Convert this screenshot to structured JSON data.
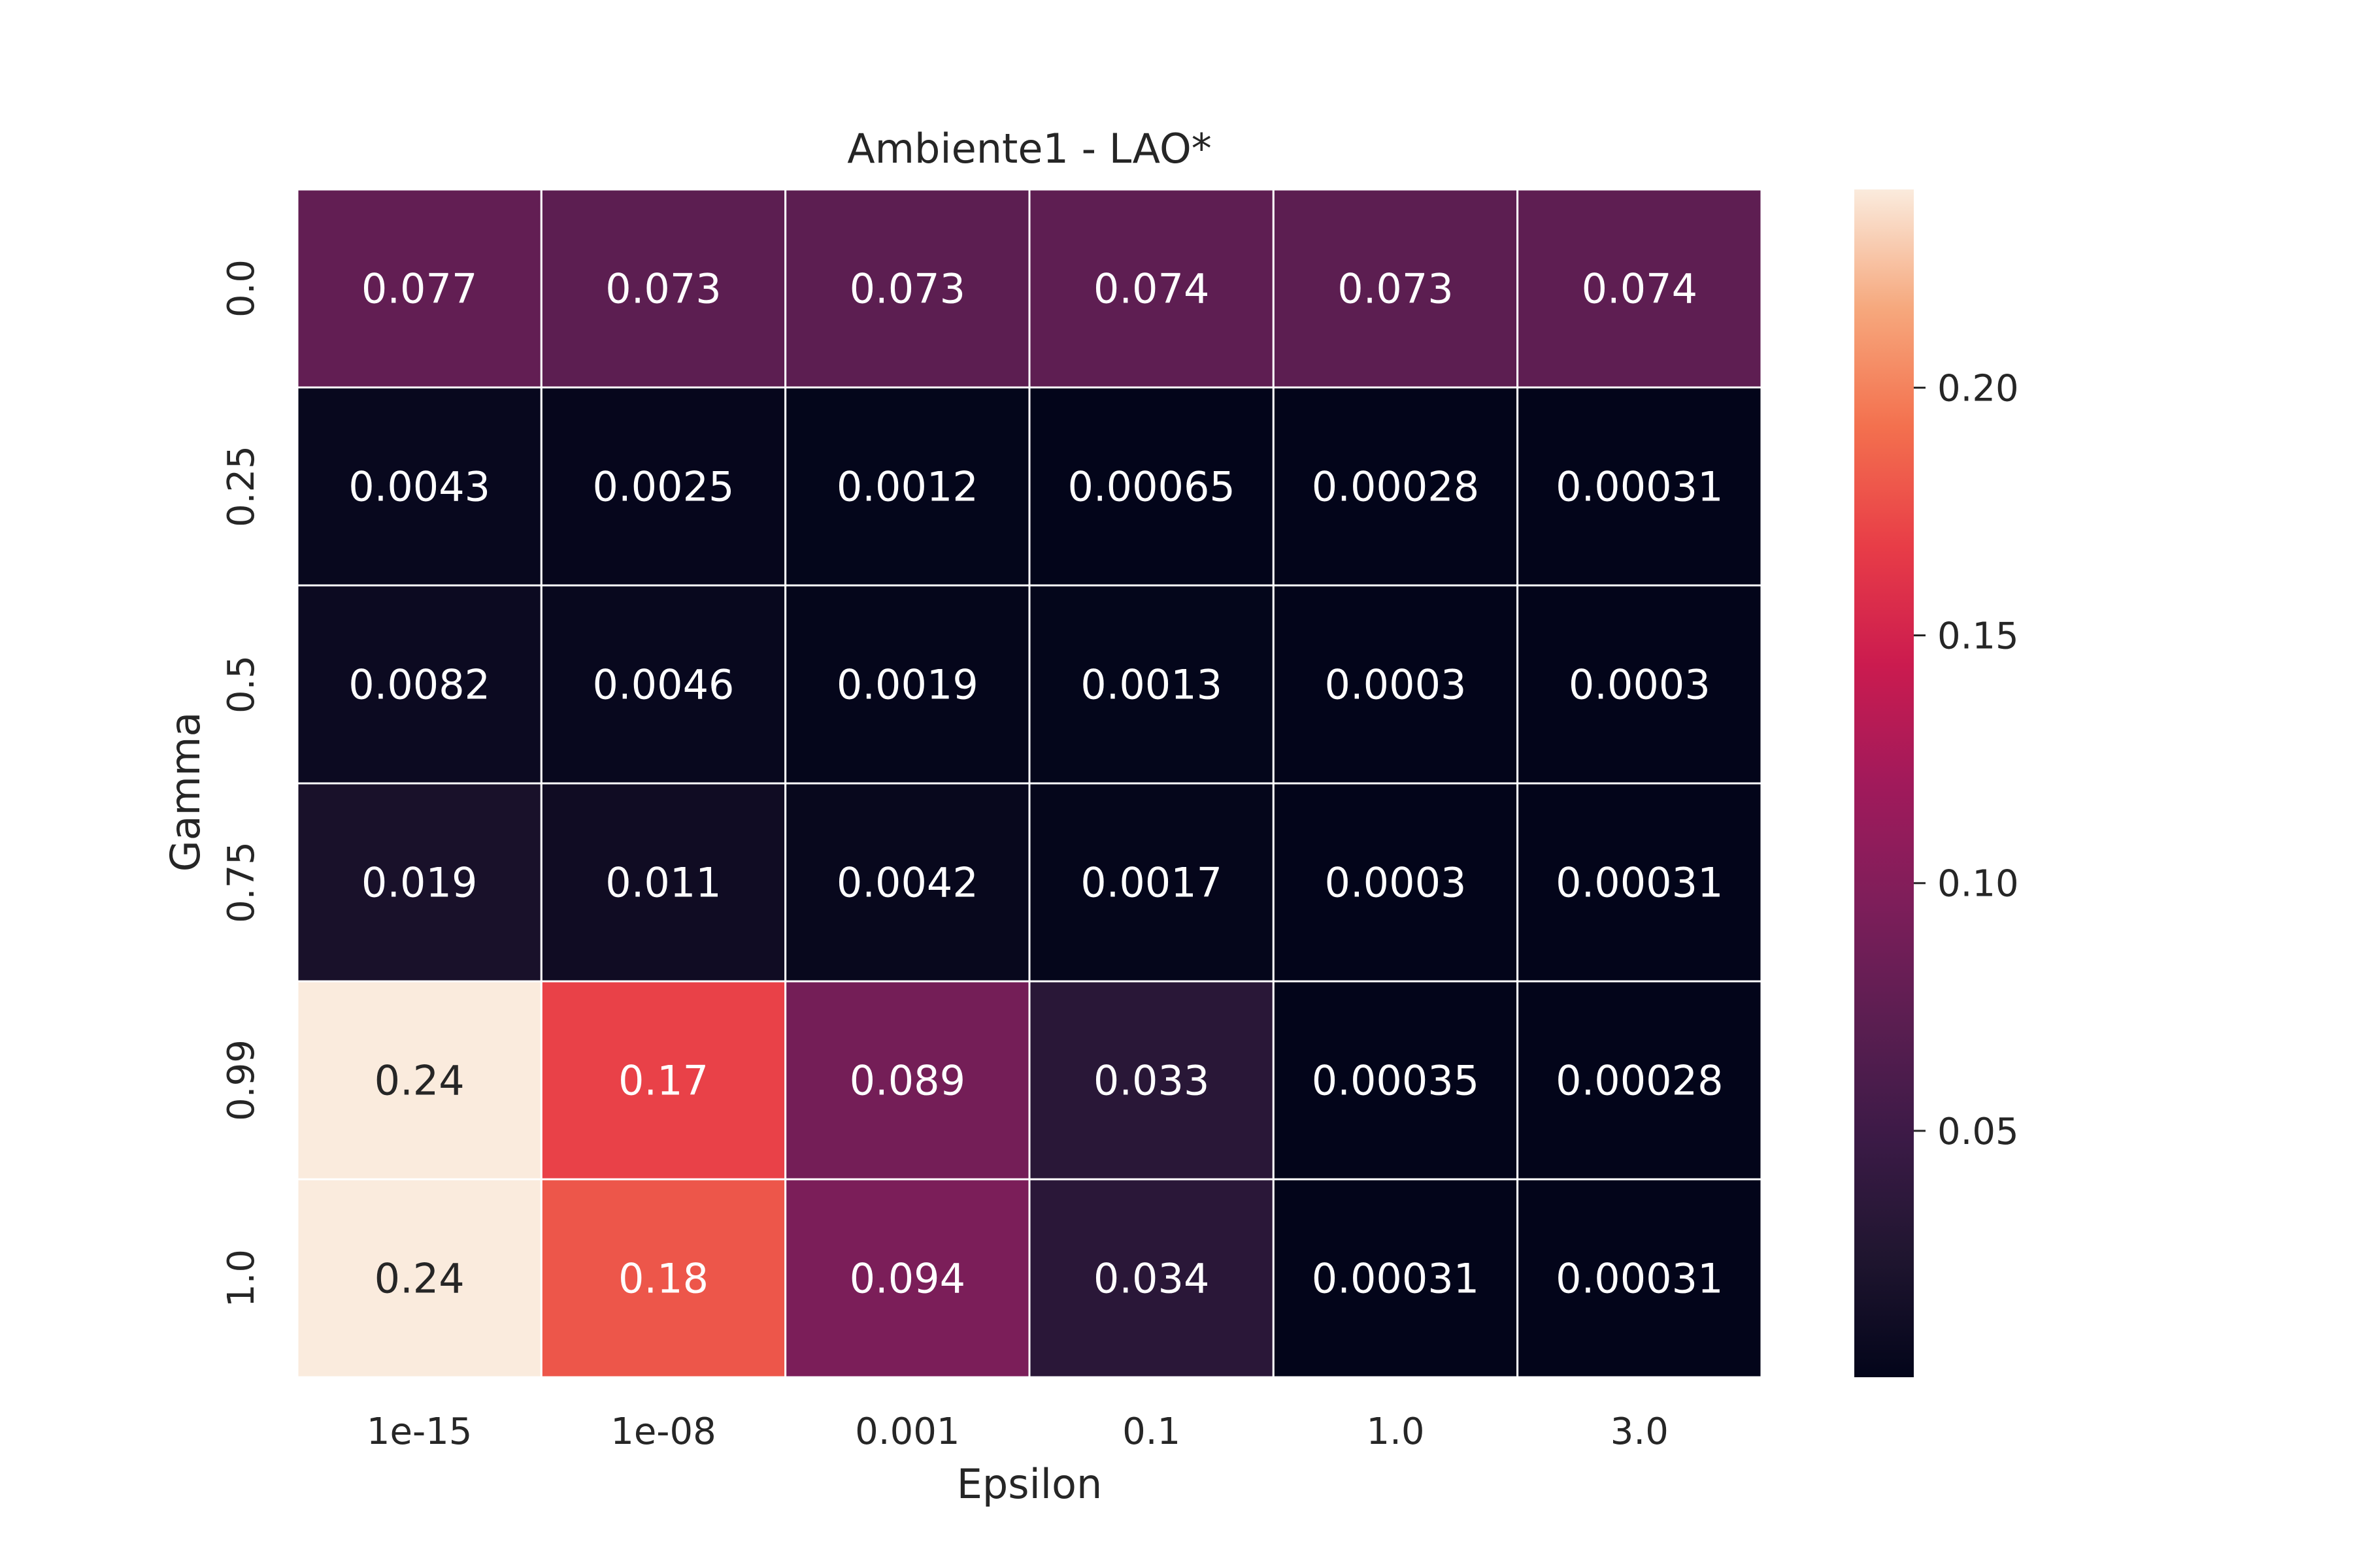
{
  "chart_data": {
    "type": "heatmap",
    "title": "Ambiente1 - LAO*",
    "xlabel": "Epsilon",
    "ylabel": "Gamma",
    "x_categories": [
      "1e-15",
      "1e-08",
      "0.001",
      "0.1",
      "1.0",
      "3.0"
    ],
    "y_categories": [
      "0.0",
      "0.25",
      "0.5",
      "0.75",
      "0.99",
      "1.0"
    ],
    "values": [
      [
        0.077,
        0.073,
        0.073,
        0.074,
        0.073,
        0.074
      ],
      [
        0.0043,
        0.0025,
        0.0012,
        0.00065,
        0.00028,
        0.00031
      ],
      [
        0.0082,
        0.0046,
        0.0019,
        0.0013,
        0.0003,
        0.0003
      ],
      [
        0.019,
        0.011,
        0.0042,
        0.0017,
        0.0003,
        0.00031
      ],
      [
        0.24,
        0.17,
        0.089,
        0.033,
        0.00035,
        0.00028
      ],
      [
        0.24,
        0.18,
        0.094,
        0.034,
        0.00031,
        0.00031
      ]
    ],
    "cell_labels": [
      [
        "0.077",
        "0.073",
        "0.073",
        "0.074",
        "0.073",
        "0.074"
      ],
      [
        "0.0043",
        "0.0025",
        "0.0012",
        "0.00065",
        "0.00028",
        "0.00031"
      ],
      [
        "0.0082",
        "0.0046",
        "0.0019",
        "0.0013",
        "0.0003",
        "0.0003"
      ],
      [
        "0.019",
        "0.011",
        "0.0042",
        "0.0017",
        "0.0003",
        "0.00031"
      ],
      [
        "0.24",
        "0.17",
        "0.089",
        "0.033",
        "0.00035",
        "0.00028"
      ],
      [
        "0.24",
        "0.18",
        "0.094",
        "0.034",
        "0.00031",
        "0.00031"
      ]
    ],
    "colorbar": {
      "ticks": [
        0.05,
        0.1,
        0.15,
        0.2
      ],
      "tick_labels": [
        "0.05",
        "0.10",
        "0.15",
        "0.20"
      ],
      "range": [
        0.00028,
        0.24
      ],
      "colormap": "rocket"
    },
    "grid": false,
    "legend": "colorbar-right"
  }
}
